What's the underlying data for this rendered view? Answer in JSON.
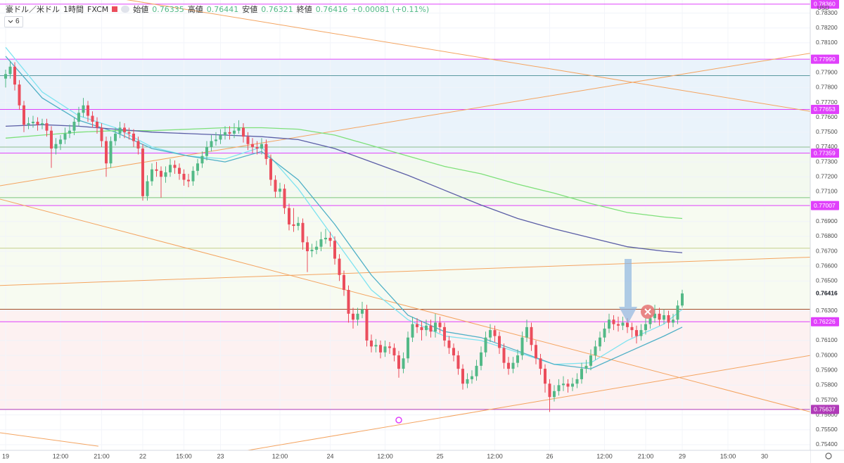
{
  "header": {
    "symbol": "豪ドル／米ドル",
    "interval": "1時間",
    "source": "FXCM",
    "open_label": "始値",
    "high_label": "高値",
    "low_label": "安値",
    "close_label": "終値",
    "change": "+0.00081 (+0.11%)",
    "indicators": "6"
  },
  "chart_data": {
    "type": "candlestick",
    "currency": "USD",
    "up_color": "#53b987",
    "down_color": "#eb4d5c",
    "xlim": [
      -1.23,
      176
    ],
    "ylim": [
      0.75362,
      0.78388
    ],
    "grid": true,
    "xticks": [
      {
        "value": 0,
        "label": "19"
      },
      {
        "value": 12,
        "label": "12:00"
      },
      {
        "value": 21,
        "label": "21:00"
      },
      {
        "value": 30,
        "label": "22"
      },
      {
        "value": 39,
        "label": "15:00"
      },
      {
        "value": 47,
        "label": "23"
      },
      {
        "value": 60,
        "label": "12:00"
      },
      {
        "value": 71,
        "label": "24"
      },
      {
        "value": 83,
        "label": "12:00"
      },
      {
        "value": 95,
        "label": "25"
      },
      {
        "value": 107,
        "label": "12:00"
      },
      {
        "value": 119,
        "label": "26"
      },
      {
        "value": 131,
        "label": "12:00"
      },
      {
        "value": 140,
        "label": "21:00"
      },
      {
        "value": 148,
        "label": "29"
      },
      {
        "value": 158,
        "label": "15:00"
      },
      {
        "value": 166,
        "label": "30"
      }
    ],
    "yticks": [
      {
        "value": 0.783,
        "label": "0.78300"
      },
      {
        "value": 0.782,
        "label": "0.78200"
      },
      {
        "value": 0.781,
        "label": "0.78100"
      },
      {
        "value": 0.779,
        "label": "0.77900"
      },
      {
        "value": 0.778,
        "label": "0.77800"
      },
      {
        "value": 0.777,
        "label": "0.77700"
      },
      {
        "value": 0.776,
        "label": "0.77600"
      },
      {
        "value": 0.775,
        "label": "0.77500"
      },
      {
        "value": 0.774,
        "label": "0.77400"
      },
      {
        "value": 0.773,
        "label": "0.77300"
      },
      {
        "value": 0.772,
        "label": "0.77200"
      },
      {
        "value": 0.771,
        "label": "0.77100"
      },
      {
        "value": 0.769,
        "label": "0.76900"
      },
      {
        "value": 0.768,
        "label": "0.76800"
      },
      {
        "value": 0.767,
        "label": "0.76700"
      },
      {
        "value": 0.766,
        "label": "0.76600"
      },
      {
        "value": 0.765,
        "label": "0.76500"
      },
      {
        "value": 0.763,
        "label": "0.76300"
      },
      {
        "value": 0.761,
        "label": "0.76100"
      },
      {
        "value": 0.76,
        "label": "0.76000"
      },
      {
        "value": 0.759,
        "label": "0.75900"
      },
      {
        "value": 0.758,
        "label": "0.75800"
      },
      {
        "value": 0.757,
        "label": "0.75700"
      },
      {
        "value": 0.756,
        "label": "0.75600"
      },
      {
        "value": 0.755,
        "label": "0.75500"
      },
      {
        "value": 0.754,
        "label": "0.75400"
      }
    ],
    "zones": [
      {
        "from": 0.77359,
        "to": 0.7799,
        "color": "#eaf3fb"
      },
      {
        "from": 0.77007,
        "to": 0.77359,
        "color": "#f3f9ef"
      },
      {
        "from": 0.7631,
        "to": 0.77007,
        "color": "#f7fbf1"
      },
      {
        "from": 0.75637,
        "to": 0.7631,
        "color": "#fdf1f1"
      }
    ],
    "hlines": [
      {
        "value": 0.7836,
        "label": "0.78360",
        "color": "#e040fb"
      },
      {
        "value": 0.7799,
        "label": "0.77990",
        "color": "#e040fb"
      },
      {
        "value": 0.7788,
        "color": "#5b9aa0"
      },
      {
        "value": 0.77653,
        "label": "0.77653",
        "color": "#e040fb"
      },
      {
        "value": 0.774,
        "color": "#8fbc8f"
      },
      {
        "value": 0.77359,
        "label": "0.77359",
        "color": "#e040fb"
      },
      {
        "value": 0.7706,
        "color": "#7cc47c"
      },
      {
        "value": 0.77007,
        "label": "0.77007",
        "color": "#e040fb"
      },
      {
        "value": 0.7672,
        "color": "#c5d08c"
      },
      {
        "value": 0.7631,
        "color": "#a0522d"
      },
      {
        "value": 0.76226,
        "label": "0.76226",
        "color": "#e040fb"
      },
      {
        "value": 0.75637,
        "label": "0.75637",
        "color": "#b03ab8"
      }
    ],
    "trendlines": [
      {
        "x": [
          26.5,
          176
        ],
        "y": [
          0.7839,
          0.7764
        ],
        "color": "#f4a460"
      },
      {
        "x": [
          -1.23,
          176
        ],
        "y": [
          0.7714,
          0.7803
        ],
        "color": "#f4a460"
      },
      {
        "x": [
          -1.23,
          176
        ],
        "y": [
          0.7647,
          0.7666
        ],
        "color": "#f4a460"
      },
      {
        "x": [
          -1.23,
          176
        ],
        "y": [
          0.7705,
          0.7562
        ],
        "color": "#f4a460"
      },
      {
        "x": [
          52.6,
          176
        ],
        "y": [
          0.7536,
          0.76
        ],
        "color": "#f4a460"
      },
      {
        "x": [
          -1.23,
          20.3
        ],
        "y": [
          0.7548,
          0.7539
        ],
        "color": "#f4a460"
      }
    ],
    "moving_averages": {
      "x": [
        0,
        8,
        16,
        24,
        32,
        40,
        48,
        56,
        64,
        72,
        80,
        88,
        96,
        104,
        112,
        120,
        128,
        136,
        144,
        148
      ],
      "series": [
        {
          "color": "#7fe3f0",
          "values": [
            0.7807,
            0.7777,
            0.7761,
            0.7753,
            0.774,
            0.7734,
            0.7732,
            0.774,
            0.7712,
            0.7678,
            0.7644,
            0.7624,
            0.7613,
            0.761,
            0.7602,
            0.7594,
            0.7595,
            0.761,
            0.7621,
            0.7631
          ]
        },
        {
          "color": "#4fb0c6",
          "values": [
            0.7801,
            0.7773,
            0.7758,
            0.775,
            0.7739,
            0.7734,
            0.773,
            0.7737,
            0.7718,
            0.7688,
            0.7654,
            0.7627,
            0.7616,
            0.7612,
            0.7603,
            0.7594,
            0.7591,
            0.7602,
            0.7613,
            0.7619
          ]
        },
        {
          "color": "#7ee07a",
          "values": [
            0.7746,
            0.7748,
            0.775,
            0.7751,
            0.7751,
            0.7752,
            0.7753,
            0.7753,
            0.7752,
            0.7748,
            0.7741,
            0.7734,
            0.7727,
            0.7722,
            0.7715,
            0.7709,
            0.7702,
            0.7696,
            0.7693,
            0.7692
          ]
        },
        {
          "color": "#5b5ea6",
          "values": [
            0.7754,
            0.7755,
            0.7754,
            0.7752,
            0.775,
            0.7749,
            0.7748,
            0.7747,
            0.7745,
            0.7739,
            0.773,
            0.7721,
            0.7711,
            0.7701,
            0.7692,
            0.7685,
            0.7679,
            0.7673,
            0.767,
            0.7669
          ]
        }
      ]
    },
    "ohlc": [
      [
        0.7786,
        0.7792,
        0.778,
        0.7789
      ],
      [
        0.7789,
        0.7798,
        0.7786,
        0.7794
      ],
      [
        0.7794,
        0.7797,
        0.7778,
        0.7782
      ],
      [
        0.7782,
        0.7785,
        0.7765,
        0.7768
      ],
      [
        0.7768,
        0.7771,
        0.775,
        0.7755
      ],
      [
        0.7755,
        0.776,
        0.7752,
        0.7756
      ],
      [
        0.7756,
        0.7761,
        0.7753,
        0.7757
      ],
      [
        0.7757,
        0.776,
        0.7751,
        0.7755
      ],
      [
        0.7755,
        0.7759,
        0.7752,
        0.7756
      ],
      [
        0.7756,
        0.7759,
        0.7747,
        0.7751
      ],
      [
        0.7751,
        0.7754,
        0.7726,
        0.7739
      ],
      [
        0.7739,
        0.7746,
        0.7735,
        0.7742
      ],
      [
        0.7742,
        0.7748,
        0.7738,
        0.7745
      ],
      [
        0.7745,
        0.7753,
        0.7742,
        0.7749
      ],
      [
        0.7749,
        0.7755,
        0.7746,
        0.7751
      ],
      [
        0.7751,
        0.776,
        0.7748,
        0.7757
      ],
      [
        0.7757,
        0.7767,
        0.7754,
        0.7763
      ],
      [
        0.7763,
        0.7773,
        0.776,
        0.7768
      ],
      [
        0.7768,
        0.7771,
        0.7757,
        0.7761
      ],
      [
        0.7761,
        0.7764,
        0.7753,
        0.7757
      ],
      [
        0.7757,
        0.776,
        0.7749,
        0.7753
      ],
      [
        0.7753,
        0.7756,
        0.774,
        0.7744
      ],
      [
        0.7744,
        0.7747,
        0.772,
        0.7729
      ],
      [
        0.7729,
        0.7747,
        0.7726,
        0.7744
      ],
      [
        0.7744,
        0.7753,
        0.7741,
        0.7749
      ],
      [
        0.7749,
        0.7757,
        0.7746,
        0.7753
      ],
      [
        0.7753,
        0.7756,
        0.7746,
        0.775
      ],
      [
        0.775,
        0.7753,
        0.7745,
        0.7749
      ],
      [
        0.7749,
        0.7752,
        0.774,
        0.7744
      ],
      [
        0.7744,
        0.7747,
        0.7735,
        0.7739
      ],
      [
        0.7739,
        0.7742,
        0.7704,
        0.7707
      ],
      [
        0.7707,
        0.7721,
        0.7704,
        0.7717
      ],
      [
        0.7717,
        0.7729,
        0.7714,
        0.7725
      ],
      [
        0.7725,
        0.773,
        0.772,
        0.7724
      ],
      [
        0.7724,
        0.7727,
        0.7706,
        0.772
      ],
      [
        0.772,
        0.7727,
        0.7716,
        0.7723
      ],
      [
        0.7723,
        0.7732,
        0.772,
        0.7728
      ],
      [
        0.7728,
        0.7731,
        0.7722,
        0.7726
      ],
      [
        0.7726,
        0.7729,
        0.7718,
        0.7722
      ],
      [
        0.7722,
        0.7725,
        0.7714,
        0.7718
      ],
      [
        0.7718,
        0.7722,
        0.7713,
        0.7717
      ],
      [
        0.7717,
        0.7727,
        0.7714,
        0.7724
      ],
      [
        0.7724,
        0.7732,
        0.7721,
        0.7729
      ],
      [
        0.7729,
        0.7737,
        0.7726,
        0.7734
      ],
      [
        0.7734,
        0.7744,
        0.7731,
        0.774
      ],
      [
        0.774,
        0.7748,
        0.7737,
        0.7744
      ],
      [
        0.7744,
        0.775,
        0.7741,
        0.7745
      ],
      [
        0.7745,
        0.7752,
        0.7742,
        0.7748
      ],
      [
        0.7748,
        0.7754,
        0.7745,
        0.775
      ],
      [
        0.775,
        0.7754,
        0.7745,
        0.7749
      ],
      [
        0.7749,
        0.7756,
        0.7746,
        0.7751
      ],
      [
        0.7751,
        0.7758,
        0.7749,
        0.7753
      ],
      [
        0.7753,
        0.7756,
        0.7743,
        0.7747
      ],
      [
        0.7747,
        0.775,
        0.7738,
        0.7742
      ],
      [
        0.7742,
        0.7746,
        0.7736,
        0.774
      ],
      [
        0.774,
        0.7744,
        0.7735,
        0.7739
      ],
      [
        0.7739,
        0.7746,
        0.7735,
        0.7742
      ],
      [
        0.7742,
        0.7745,
        0.7728,
        0.7732
      ],
      [
        0.7732,
        0.7735,
        0.7714,
        0.7718
      ],
      [
        0.7718,
        0.7721,
        0.7706,
        0.771
      ],
      [
        0.771,
        0.7716,
        0.7706,
        0.7712
      ],
      [
        0.7712,
        0.7715,
        0.7695,
        0.7699
      ],
      [
        0.7699,
        0.7702,
        0.7684,
        0.7688
      ],
      [
        0.7688,
        0.7699,
        0.7683,
        0.7687
      ],
      [
        0.7687,
        0.7693,
        0.7684,
        0.7689
      ],
      [
        0.7689,
        0.7692,
        0.7671,
        0.7676
      ],
      [
        0.7676,
        0.768,
        0.7656,
        0.767
      ],
      [
        0.767,
        0.7675,
        0.7666,
        0.7671
      ],
      [
        0.7671,
        0.7677,
        0.7668,
        0.7673
      ],
      [
        0.7673,
        0.7683,
        0.767,
        0.7678
      ],
      [
        0.7678,
        0.7685,
        0.7675,
        0.7679
      ],
      [
        0.7679,
        0.7683,
        0.7673,
        0.7677
      ],
      [
        0.7677,
        0.768,
        0.7661,
        0.7665
      ],
      [
        0.7665,
        0.7668,
        0.765,
        0.7654
      ],
      [
        0.7654,
        0.7657,
        0.764,
        0.7644
      ],
      [
        0.7644,
        0.7647,
        0.7622,
        0.7628
      ],
      [
        0.7628,
        0.7632,
        0.7618,
        0.7624
      ],
      [
        0.7624,
        0.7632,
        0.762,
        0.7628
      ],
      [
        0.7628,
        0.7636,
        0.7625,
        0.7631
      ],
      [
        0.7631,
        0.7634,
        0.7606,
        0.761
      ],
      [
        0.761,
        0.7614,
        0.7602,
        0.7606
      ],
      [
        0.7606,
        0.7611,
        0.7602,
        0.7607
      ],
      [
        0.7607,
        0.761,
        0.7598,
        0.7602
      ],
      [
        0.7602,
        0.761,
        0.7599,
        0.7606
      ],
      [
        0.7606,
        0.7609,
        0.7601,
        0.7605
      ],
      [
        0.7605,
        0.7608,
        0.7596,
        0.76
      ],
      [
        0.76,
        0.7603,
        0.7585,
        0.7591
      ],
      [
        0.7591,
        0.7602,
        0.7588,
        0.7598
      ],
      [
        0.7598,
        0.7616,
        0.7595,
        0.7612
      ],
      [
        0.7612,
        0.7626,
        0.7609,
        0.7621
      ],
      [
        0.7621,
        0.7625,
        0.7615,
        0.7619
      ],
      [
        0.7619,
        0.7623,
        0.761,
        0.7617
      ],
      [
        0.7617,
        0.7624,
        0.7613,
        0.762
      ],
      [
        0.762,
        0.7624,
        0.7612,
        0.7616
      ],
      [
        0.7616,
        0.7628,
        0.7612,
        0.7622
      ],
      [
        0.7622,
        0.7626,
        0.7615,
        0.7619
      ],
      [
        0.7619,
        0.7622,
        0.7606,
        0.761
      ],
      [
        0.761,
        0.7613,
        0.7601,
        0.7605
      ],
      [
        0.7605,
        0.7608,
        0.7596,
        0.76
      ],
      [
        0.76,
        0.7603,
        0.7587,
        0.7591
      ],
      [
        0.7591,
        0.7594,
        0.7577,
        0.7581
      ],
      [
        0.7581,
        0.7588,
        0.7578,
        0.7584
      ],
      [
        0.7584,
        0.759,
        0.7581,
        0.7586
      ],
      [
        0.7586,
        0.7597,
        0.7583,
        0.7593
      ],
      [
        0.7593,
        0.7606,
        0.759,
        0.7602
      ],
      [
        0.7602,
        0.7616,
        0.7599,
        0.7612
      ],
      [
        0.7612,
        0.7621,
        0.7609,
        0.7617
      ],
      [
        0.7617,
        0.762,
        0.7609,
        0.7613
      ],
      [
        0.7613,
        0.7616,
        0.7601,
        0.7605
      ],
      [
        0.7605,
        0.7608,
        0.7591,
        0.7595
      ],
      [
        0.7595,
        0.7599,
        0.7587,
        0.7591
      ],
      [
        0.7591,
        0.7599,
        0.7588,
        0.7595
      ],
      [
        0.7595,
        0.7604,
        0.7592,
        0.76
      ],
      [
        0.76,
        0.7616,
        0.7597,
        0.7612
      ],
      [
        0.7612,
        0.7624,
        0.7609,
        0.7619
      ],
      [
        0.7619,
        0.7622,
        0.7603,
        0.7607
      ],
      [
        0.7607,
        0.761,
        0.7594,
        0.7598
      ],
      [
        0.7598,
        0.7601,
        0.7587,
        0.7591
      ],
      [
        0.7591,
        0.7594,
        0.7575,
        0.7581
      ],
      [
        0.7581,
        0.7584,
        0.7562,
        0.7572
      ],
      [
        0.7572,
        0.758,
        0.7569,
        0.7576
      ],
      [
        0.7576,
        0.7584,
        0.7573,
        0.758
      ],
      [
        0.758,
        0.7586,
        0.7576,
        0.7581
      ],
      [
        0.7581,
        0.7584,
        0.7575,
        0.7579
      ],
      [
        0.7579,
        0.7585,
        0.7576,
        0.7581
      ],
      [
        0.7581,
        0.7588,
        0.7578,
        0.7584
      ],
      [
        0.7584,
        0.7595,
        0.7581,
        0.7591
      ],
      [
        0.7591,
        0.7597,
        0.7588,
        0.7593
      ],
      [
        0.7593,
        0.7604,
        0.759,
        0.76
      ],
      [
        0.76,
        0.761,
        0.7597,
        0.7606
      ],
      [
        0.7606,
        0.7616,
        0.7603,
        0.7612
      ],
      [
        0.7612,
        0.7622,
        0.7609,
        0.7618
      ],
      [
        0.7618,
        0.7628,
        0.7615,
        0.7624
      ],
      [
        0.7624,
        0.7627,
        0.7617,
        0.7621
      ],
      [
        0.7621,
        0.7626,
        0.7616,
        0.762
      ],
      [
        0.762,
        0.7626,
        0.7617,
        0.7622
      ],
      [
        0.7622,
        0.7625,
        0.7615,
        0.7619
      ],
      [
        0.7619,
        0.7622,
        0.7612,
        0.7617
      ],
      [
        0.7617,
        0.762,
        0.7608,
        0.7613
      ],
      [
        0.7613,
        0.7621,
        0.761,
        0.7617
      ],
      [
        0.7617,
        0.7625,
        0.7614,
        0.7621
      ],
      [
        0.7621,
        0.7629,
        0.7618,
        0.7625
      ],
      [
        0.7625,
        0.7634,
        0.7622,
        0.7628
      ],
      [
        0.7628,
        0.7632,
        0.762,
        0.7624
      ],
      [
        0.7624,
        0.7631,
        0.7621,
        0.7627
      ],
      [
        0.7627,
        0.763,
        0.7618,
        0.7622
      ],
      [
        0.7622,
        0.7628,
        0.7619,
        0.7624
      ],
      [
        0.7624,
        0.7637,
        0.7621,
        0.76335
      ],
      [
        0.76335,
        0.76441,
        0.76321,
        0.76416
      ]
    ]
  }
}
